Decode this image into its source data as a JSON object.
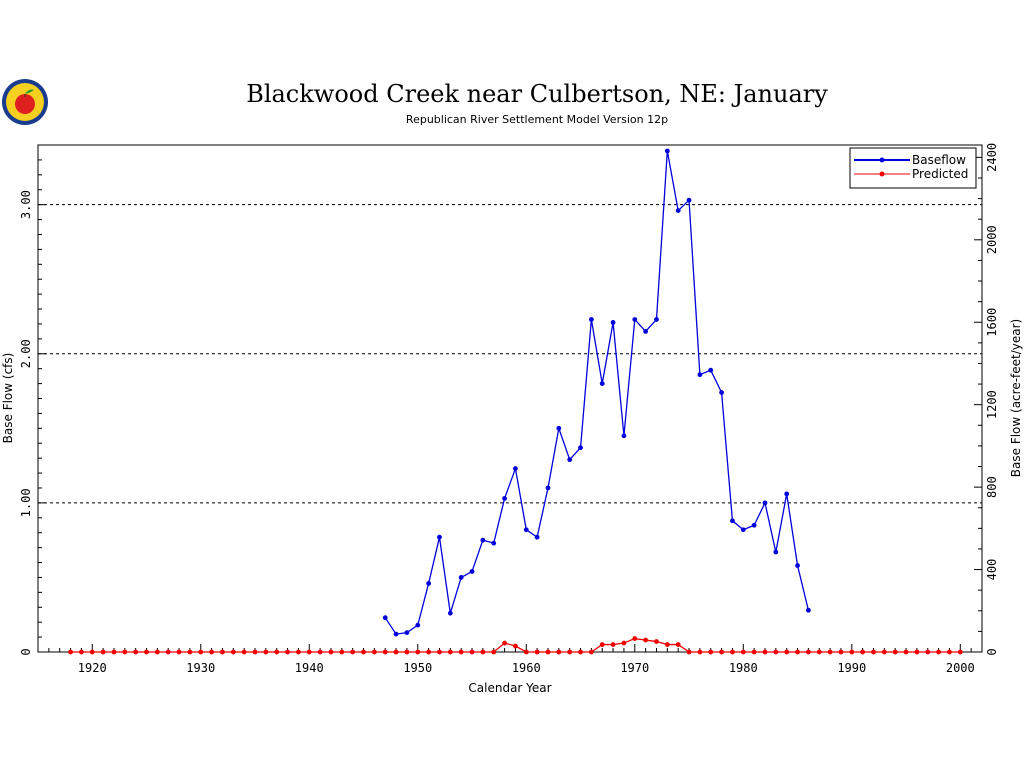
{
  "chart_data": {
    "type": "line",
    "title": "Blackwood Creek near Culbertson, NE: January",
    "subtitle": "Republican River Settlement Model Version 12p",
    "xlabel": "Calendar Year",
    "ylabel": "Base Flow (cfs)",
    "y2label": "Base Flow (acre-feet/year)",
    "xlim": [
      1915,
      2002
    ],
    "ylim": [
      0,
      3.4
    ],
    "y2lim": [
      0,
      2460
    ],
    "x_ticks": [
      1920,
      1930,
      1940,
      1950,
      1960,
      1970,
      1980,
      1990,
      2000
    ],
    "y_ticks": [
      {
        "value": 0,
        "label": "0"
      },
      {
        "value": 1,
        "label": "1.00"
      },
      {
        "value": 2,
        "label": "2.00"
      },
      {
        "value": 3,
        "label": "3.00"
      }
    ],
    "y2_ticks": [
      {
        "value": 0,
        "label": "0"
      },
      {
        "value": 400,
        "label": "400"
      },
      {
        "value": 800,
        "label": "800"
      },
      {
        "value": 1200,
        "label": "1200"
      },
      {
        "value": 1600,
        "label": "1600"
      },
      {
        "value": 2000,
        "label": "2000"
      },
      {
        "value": 2400,
        "label": "2400"
      }
    ],
    "gridlines_y": [
      1,
      2,
      3
    ],
    "legend_position": "top-right",
    "series": [
      {
        "name": "Baseflow",
        "color": "#0000dd",
        "x": [
          1947,
          1948,
          1949,
          1950,
          1951,
          1952,
          1953,
          1954,
          1955,
          1956,
          1957,
          1958,
          1959,
          1960,
          1961,
          1962,
          1963,
          1964,
          1965,
          1966,
          1967,
          1968,
          1969,
          1970,
          1971,
          1972,
          1973,
          1974,
          1975,
          1976,
          1977,
          1978,
          1979,
          1980,
          1981,
          1982,
          1983,
          1984,
          1985,
          1986
        ],
        "values": [
          0.23,
          0.12,
          0.13,
          0.18,
          0.46,
          0.77,
          0.26,
          0.5,
          0.54,
          0.75,
          0.73,
          1.03,
          1.23,
          0.82,
          0.77,
          1.1,
          1.5,
          1.29,
          1.37,
          2.23,
          1.8,
          2.21,
          1.45,
          2.23,
          2.15,
          2.23,
          3.36,
          2.96,
          3.03,
          1.86,
          1.89,
          1.74,
          0.88,
          0.82,
          0.85,
          1.0,
          0.67,
          1.06,
          0.58,
          0.28
        ]
      },
      {
        "name": "Predicted",
        "color": "#ee0000",
        "x": [
          1918,
          1919,
          1920,
          1921,
          1922,
          1923,
          1924,
          1925,
          1926,
          1927,
          1928,
          1929,
          1930,
          1931,
          1932,
          1933,
          1934,
          1935,
          1936,
          1937,
          1938,
          1939,
          1940,
          1941,
          1942,
          1943,
          1944,
          1945,
          1946,
          1947,
          1948,
          1949,
          1950,
          1951,
          1952,
          1953,
          1954,
          1955,
          1956,
          1957,
          1958,
          1959,
          1960,
          1961,
          1962,
          1963,
          1964,
          1965,
          1966,
          1967,
          1968,
          1969,
          1970,
          1971,
          1972,
          1973,
          1974,
          1975,
          1976,
          1977,
          1978,
          1979,
          1980,
          1981,
          1982,
          1983,
          1984,
          1985,
          1986,
          1987,
          1988,
          1989,
          1990,
          1991,
          1992,
          1993,
          1994,
          1995,
          1996,
          1997,
          1998,
          1999,
          2000
        ],
        "values": [
          0,
          0,
          0,
          0,
          0,
          0,
          0,
          0,
          0,
          0,
          0,
          0,
          0,
          0,
          0,
          0,
          0,
          0,
          0,
          0,
          0,
          0,
          0,
          0,
          0,
          0,
          0,
          0,
          0,
          0,
          0,
          0,
          0,
          0,
          0,
          0,
          0,
          0,
          0,
          0,
          0.06,
          0.04,
          0,
          0,
          0,
          0,
          0,
          0,
          0,
          0.05,
          0.05,
          0.06,
          0.09,
          0.08,
          0.07,
          0.05,
          0.05,
          0,
          0,
          0,
          0,
          0,
          0,
          0,
          0,
          0,
          0,
          0,
          0,
          0,
          0,
          0,
          0,
          0,
          0,
          0,
          0,
          0,
          0,
          0,
          0,
          0,
          0
        ]
      }
    ]
  }
}
